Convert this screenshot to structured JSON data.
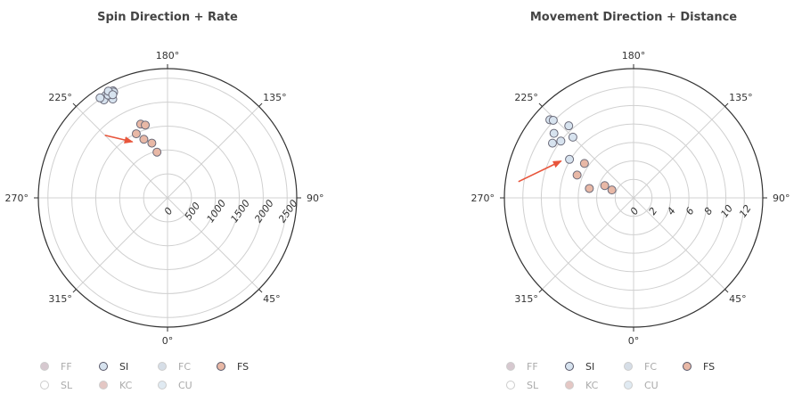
{
  "chart_data": [
    {
      "type": "scatter",
      "subtype": "polar",
      "title": "Spin Direction + Rate",
      "angle_labels": [
        "180°",
        "135°",
        "90°",
        "45°",
        "0°",
        "315°",
        "270°",
        "225°"
      ],
      "radial_ticks": [
        "0",
        "500",
        "1000",
        "1500",
        "2000",
        "2500"
      ],
      "radial_range": [
        0,
        2700
      ],
      "series": [
        {
          "name": "SI",
          "color": "#d7e3ef",
          "stroke": "#6b6b7a",
          "points": [
            {
              "theta": 209,
              "r": 2430
            },
            {
              "theta": 211,
              "r": 2500
            },
            {
              "theta": 207,
              "r": 2510
            },
            {
              "theta": 213,
              "r": 2440
            },
            {
              "theta": 209,
              "r": 2360
            },
            {
              "theta": 214,
              "r": 2520
            },
            {
              "theta": 210,
              "r": 2480
            },
            {
              "theta": 207,
              "r": 2480
            },
            {
              "theta": 209,
              "r": 2550
            },
            {
              "theta": 208,
              "r": 2440
            }
          ]
        },
        {
          "name": "FS",
          "color": "#e8b8a6",
          "stroke": "#6b6b7a",
          "points": [
            {
              "theta": 206,
              "r": 1490
            },
            {
              "theta": 200,
              "r": 1640
            },
            {
              "theta": 202,
              "r": 1320
            },
            {
              "theta": 196,
              "r": 1190
            },
            {
              "theta": 197,
              "r": 1590
            },
            {
              "theta": 193,
              "r": 980
            }
          ]
        }
      ],
      "arrow": {
        "from": {
          "theta": 225,
          "r": 1850
        },
        "to": {
          "theta": 212,
          "r": 1380
        }
      }
    },
    {
      "type": "scatter",
      "subtype": "polar",
      "title": "Movement Direction + Distance",
      "angle_labels": [
        "180°",
        "135°",
        "90°",
        "45°",
        "0°",
        "315°",
        "270°",
        "225°"
      ],
      "radial_ticks": [
        "0",
        "2",
        "4",
        "6",
        "8",
        "10",
        "12"
      ],
      "radial_range": [
        0,
        14
      ],
      "series": [
        {
          "name": "SI",
          "color": "#d7e3ef",
          "stroke": "#6b6b7a",
          "points": [
            {
              "theta": 227,
              "r": 12.4
            },
            {
              "theta": 231,
              "r": 11.1
            },
            {
              "theta": 222,
              "r": 10.5
            },
            {
              "theta": 236,
              "r": 10.6
            },
            {
              "theta": 225,
              "r": 9.3
            },
            {
              "theta": 232,
              "r": 10.0
            },
            {
              "theta": 239,
              "r": 8.1
            },
            {
              "theta": 226,
              "r": 12.1
            }
          ]
        },
        {
          "name": "FS",
          "color": "#e8b8a6",
          "stroke": "#6b6b7a",
          "points": [
            {
              "theta": 235,
              "r": 6.5
            },
            {
              "theta": 248,
              "r": 6.6
            },
            {
              "theta": 247,
              "r": 3.4
            },
            {
              "theta": 250,
              "r": 2.5
            },
            {
              "theta": 258,
              "r": 4.9
            }
          ]
        }
      ],
      "arrow": {
        "from": {
          "theta": 262,
          "r": 12.6
        },
        "to": {
          "theta": 243,
          "r": 8.8
        }
      }
    }
  ],
  "legend": [
    {
      "label": "FF",
      "color": "#c9b6bf",
      "active": false
    },
    {
      "label": "SI",
      "color": "#d7e3ef",
      "active": true
    },
    {
      "label": "FC",
      "color": "#c9d3df",
      "active": false
    },
    {
      "label": "FS",
      "color": "#e8b8a6",
      "active": true
    },
    {
      "label": "SL",
      "color": "#ffffff",
      "active": false
    },
    {
      "label": "KC",
      "color": "#dcb5b1",
      "active": false
    },
    {
      "label": "CU",
      "color": "#d6e4ee",
      "active": false
    }
  ],
  "colors": {
    "grid": "#d0d0d0",
    "outer_ring": "#333333",
    "arrow": "#e8553b"
  }
}
